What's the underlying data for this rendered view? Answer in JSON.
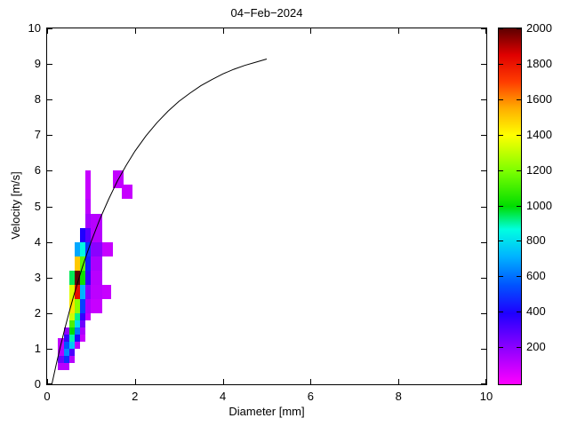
{
  "figure": {
    "background": "#ffffff",
    "frame_color": "#000000"
  },
  "chart_data": {
    "type": "heatmap",
    "title": "04−Feb−2024",
    "xlabel": "Diameter [mm]",
    "ylabel": "Velocity [m/s]",
    "xlim": [
      0,
      10
    ],
    "ylim": [
      0,
      10
    ],
    "xticks": [
      0,
      2,
      4,
      6,
      8,
      10
    ],
    "yticks": [
      0,
      1,
      2,
      3,
      4,
      5,
      6,
      7,
      8,
      9,
      10
    ],
    "grid": false,
    "legend": false,
    "colorbar": {
      "position": "right",
      "min": 0,
      "max": 2000,
      "ticks": [
        200,
        400,
        600,
        800,
        1000,
        1200,
        1400,
        1600,
        1800,
        2000
      ],
      "stops": [
        [
          0,
          "#ff00ff"
        ],
        [
          210,
          "#8a00ff"
        ],
        [
          400,
          "#1e00ff"
        ],
        [
          560,
          "#0055ff"
        ],
        [
          720,
          "#00b4ff"
        ],
        [
          870,
          "#00ffe1"
        ],
        [
          1000,
          "#00dd00"
        ],
        [
          1200,
          "#7dff00"
        ],
        [
          1400,
          "#ffff00"
        ],
        [
          1550,
          "#ffae00"
        ],
        [
          1700,
          "#ff3c00"
        ],
        [
          1850,
          "#e00000"
        ],
        [
          2000,
          "#5c0000"
        ]
      ]
    },
    "cells_format": [
      "d_min_mm",
      "d_max_mm",
      "v_min_ms",
      "v_max_ms",
      "count"
    ],
    "cells": [
      [
        0.25,
        0.5,
        0.4,
        0.6,
        130
      ],
      [
        0.25,
        0.375,
        0.6,
        0.8,
        260
      ],
      [
        0.375,
        0.5,
        0.6,
        0.8,
        480
      ],
      [
        0.5,
        0.625,
        0.6,
        0.8,
        130
      ],
      [
        0.25,
        0.375,
        0.8,
        1.0,
        130
      ],
      [
        0.375,
        0.5,
        0.8,
        1.0,
        650
      ],
      [
        0.5,
        0.625,
        0.8,
        1.0,
        320
      ],
      [
        0.25,
        0.375,
        1.0,
        1.3,
        110
      ],
      [
        0.375,
        0.5,
        1.0,
        1.2,
        560
      ],
      [
        0.5,
        0.625,
        1.0,
        1.2,
        760
      ],
      [
        0.625,
        0.75,
        1.0,
        1.2,
        130
      ],
      [
        0.375,
        0.5,
        1.2,
        1.4,
        360
      ],
      [
        0.5,
        0.625,
        1.2,
        1.4,
        900
      ],
      [
        0.625,
        0.75,
        1.2,
        1.4,
        420
      ],
      [
        0.75,
        0.875,
        1.2,
        1.4,
        100
      ],
      [
        0.375,
        0.5,
        1.4,
        1.6,
        200
      ],
      [
        0.5,
        0.625,
        1.4,
        1.6,
        1000
      ],
      [
        0.625,
        0.75,
        1.4,
        1.6,
        620
      ],
      [
        0.75,
        0.875,
        1.4,
        1.6,
        150
      ],
      [
        0.5,
        0.625,
        1.6,
        1.8,
        1120
      ],
      [
        0.625,
        0.75,
        1.6,
        1.8,
        800
      ],
      [
        0.75,
        0.875,
        1.6,
        1.8,
        260
      ],
      [
        0.5,
        0.625,
        1.8,
        2.0,
        1320
      ],
      [
        0.625,
        0.75,
        1.8,
        2.0,
        920
      ],
      [
        0.75,
        0.875,
        1.8,
        2.0,
        360
      ],
      [
        0.875,
        1.0,
        1.8,
        2.0,
        110
      ],
      [
        0.5,
        0.625,
        2.0,
        2.4,
        1450
      ],
      [
        0.625,
        0.75,
        2.0,
        2.4,
        1220
      ],
      [
        0.75,
        0.875,
        2.0,
        2.4,
        520
      ],
      [
        0.875,
        1.0,
        2.0,
        2.4,
        150
      ],
      [
        1.0,
        1.25,
        2.0,
        2.4,
        100
      ],
      [
        0.5,
        0.625,
        2.4,
        2.8,
        1350
      ],
      [
        0.625,
        0.75,
        2.4,
        2.8,
        1820
      ],
      [
        0.75,
        0.875,
        2.4,
        2.8,
        720
      ],
      [
        0.875,
        1.0,
        2.4,
        2.8,
        220
      ],
      [
        1.0,
        1.25,
        2.4,
        2.8,
        120
      ],
      [
        1.25,
        1.45,
        2.4,
        2.8,
        100
      ],
      [
        0.5,
        0.625,
        2.8,
        3.2,
        950
      ],
      [
        0.625,
        0.75,
        2.8,
        3.2,
        2000
      ],
      [
        0.75,
        0.875,
        2.8,
        3.2,
        1020
      ],
      [
        0.875,
        1.0,
        2.8,
        3.2,
        360
      ],
      [
        1.0,
        1.25,
        2.8,
        3.2,
        130
      ],
      [
        0.625,
        0.75,
        3.2,
        3.6,
        1500
      ],
      [
        0.75,
        0.875,
        3.2,
        3.6,
        1150
      ],
      [
        0.875,
        1.0,
        3.2,
        3.6,
        460
      ],
      [
        1.0,
        1.25,
        3.2,
        3.6,
        150
      ],
      [
        0.625,
        0.75,
        3.6,
        4.0,
        700
      ],
      [
        0.75,
        0.875,
        3.6,
        4.0,
        860
      ],
      [
        0.875,
        1.0,
        3.6,
        4.0,
        500
      ],
      [
        1.0,
        1.25,
        3.6,
        4.0,
        210
      ],
      [
        1.25,
        1.5,
        3.6,
        4.0,
        100
      ],
      [
        0.75,
        0.875,
        4.0,
        4.4,
        400
      ],
      [
        0.875,
        1.0,
        4.0,
        4.4,
        300
      ],
      [
        1.0,
        1.25,
        4.0,
        4.8,
        130
      ],
      [
        0.875,
        1.0,
        4.4,
        4.8,
        160
      ],
      [
        0.875,
        1.0,
        4.8,
        5.2,
        120
      ],
      [
        0.875,
        1.0,
        5.2,
        6.0,
        100
      ],
      [
        1.5,
        1.75,
        5.5,
        6.0,
        110
      ],
      [
        1.7,
        1.95,
        5.2,
        5.6,
        100
      ]
    ],
    "curve": {
      "name": "terminal-velocity-curve",
      "color": "#000000",
      "points": [
        [
          0.11,
          0.01
        ],
        [
          0.2,
          0.52
        ],
        [
          0.3,
          1.05
        ],
        [
          0.4,
          1.55
        ],
        [
          0.5,
          2.02
        ],
        [
          0.6,
          2.46
        ],
        [
          0.7,
          2.88
        ],
        [
          0.8,
          3.28
        ],
        [
          0.9,
          3.65
        ],
        [
          1.0,
          4.0
        ],
        [
          1.2,
          4.64
        ],
        [
          1.4,
          5.2
        ],
        [
          1.6,
          5.71
        ],
        [
          1.8,
          6.15
        ],
        [
          2.0,
          6.55
        ],
        [
          2.25,
          6.98
        ],
        [
          2.5,
          7.35
        ],
        [
          2.75,
          7.67
        ],
        [
          3.0,
          7.95
        ],
        [
          3.25,
          8.18
        ],
        [
          3.5,
          8.39
        ],
        [
          3.75,
          8.56
        ],
        [
          4.0,
          8.72
        ],
        [
          4.25,
          8.85
        ],
        [
          4.5,
          8.96
        ],
        [
          4.75,
          9.05
        ],
        [
          5.0,
          9.14
        ]
      ]
    }
  }
}
